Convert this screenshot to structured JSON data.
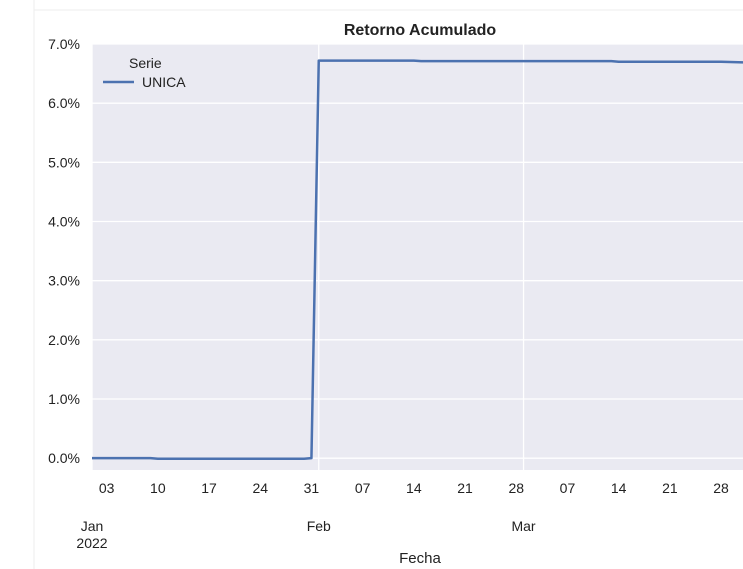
{
  "chart_data": {
    "type": "line",
    "title": "Retorno Acumulado",
    "xlabel": "Fecha",
    "ylabel": "",
    "x_range": [
      "2022-01-01",
      "2022-03-31"
    ],
    "ylim": [
      -0.002,
      0.07
    ],
    "grid": true,
    "legend": {
      "title": "Serie",
      "placement": "top-left"
    },
    "yticks": [
      {
        "value": 0.0,
        "label": "0.0%"
      },
      {
        "value": 0.01,
        "label": "1.0%"
      },
      {
        "value": 0.02,
        "label": "2.0%"
      },
      {
        "value": 0.03,
        "label": "3.0%"
      },
      {
        "value": 0.04,
        "label": "4.0%"
      },
      {
        "value": 0.05,
        "label": "5.0%"
      },
      {
        "value": 0.06,
        "label": "6.0%"
      },
      {
        "value": 0.07,
        "label": "7.0%"
      }
    ],
    "xticks_minor": [
      {
        "date": "2022-01-03",
        "label": "03"
      },
      {
        "date": "2022-01-10",
        "label": "10"
      },
      {
        "date": "2022-01-17",
        "label": "17"
      },
      {
        "date": "2022-01-24",
        "label": "24"
      },
      {
        "date": "2022-01-31",
        "label": "31"
      },
      {
        "date": "2022-02-07",
        "label": "07"
      },
      {
        "date": "2022-02-14",
        "label": "14"
      },
      {
        "date": "2022-02-21",
        "label": "21"
      },
      {
        "date": "2022-02-28",
        "label": "28"
      },
      {
        "date": "2022-03-07",
        "label": "07"
      },
      {
        "date": "2022-03-14",
        "label": "14"
      },
      {
        "date": "2022-03-21",
        "label": "21"
      },
      {
        "date": "2022-03-28",
        "label": "28"
      }
    ],
    "xticks_major": [
      {
        "date": "2022-01-01",
        "label": "Jan",
        "sublabel": "2022"
      },
      {
        "date": "2022-02-01",
        "label": "Feb",
        "sublabel": ""
      },
      {
        "date": "2022-03-01",
        "label": "Mar",
        "sublabel": ""
      }
    ],
    "series": [
      {
        "name": "UNICA",
        "color": "#4c72b0",
        "points": [
          {
            "x": "2022-01-01",
            "y": 0.0
          },
          {
            "x": "2022-01-09",
            "y": 0.0
          },
          {
            "x": "2022-01-10",
            "y": -0.0001
          },
          {
            "x": "2022-01-30",
            "y": -0.0001
          },
          {
            "x": "2022-01-31",
            "y": 0.0
          },
          {
            "x": "2022-02-01",
            "y": 0.0672
          },
          {
            "x": "2022-02-14",
            "y": 0.0672
          },
          {
            "x": "2022-02-15",
            "y": 0.0671
          },
          {
            "x": "2022-03-13",
            "y": 0.0671
          },
          {
            "x": "2022-03-14",
            "y": 0.067
          },
          {
            "x": "2022-03-28",
            "y": 0.067
          },
          {
            "x": "2022-03-31",
            "y": 0.0669
          }
        ]
      }
    ]
  }
}
